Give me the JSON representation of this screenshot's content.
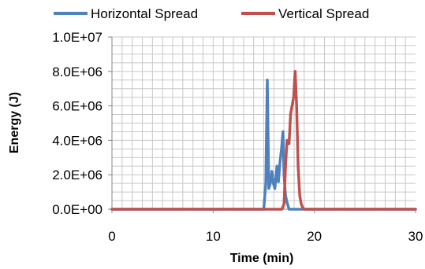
{
  "chart_data": {
    "type": "line",
    "title": "",
    "xlabel": "Time (min)",
    "ylabel": "Energy (J)",
    "xlim": [
      0,
      30
    ],
    "ylim": [
      0,
      10000000
    ],
    "x_ticks": [
      0,
      10,
      20,
      30
    ],
    "x_tick_labels": [
      "0",
      "10",
      "20",
      "30"
    ],
    "y_ticks": [
      0,
      2000000,
      4000000,
      6000000,
      8000000,
      10000000
    ],
    "y_tick_labels": [
      "0.0E+00",
      "2.0E+06",
      "4.0E+06",
      "6.0E+06",
      "8.0E+06",
      "1.0E+07"
    ],
    "grid": true,
    "legend_position": "top",
    "colors": {
      "horizontal": "#4f81bd",
      "vertical": "#c0504d",
      "grid": "#c8c8c8",
      "axis": "#868686"
    },
    "series": [
      {
        "name": "Horizontal Spread",
        "x": [
          0,
          15.0,
          15.2,
          15.35,
          15.5,
          15.65,
          15.8,
          15.95,
          16.1,
          16.3,
          16.45,
          16.6,
          16.75,
          16.9,
          17.0,
          17.15,
          17.3,
          17.5,
          17.8,
          30
        ],
        "y": [
          0,
          0,
          1500000,
          7500000,
          1200000,
          1500000,
          2200000,
          1500000,
          1200000,
          2500000,
          1600000,
          2700000,
          3500000,
          4500000,
          2000000,
          800000,
          400000,
          0,
          0,
          0
        ]
      },
      {
        "name": "Vertical Spread",
        "x": [
          0,
          16.8,
          17.0,
          17.15,
          17.3,
          17.5,
          17.65,
          17.8,
          17.95,
          18.1,
          18.25,
          18.4,
          18.55,
          18.7,
          18.85,
          19.0,
          30
        ],
        "y": [
          0,
          0,
          300000,
          2500000,
          4000000,
          3800000,
          5500000,
          6000000,
          6500000,
          8000000,
          6000000,
          2500000,
          800000,
          300000,
          100000,
          0,
          0
        ]
      }
    ]
  }
}
